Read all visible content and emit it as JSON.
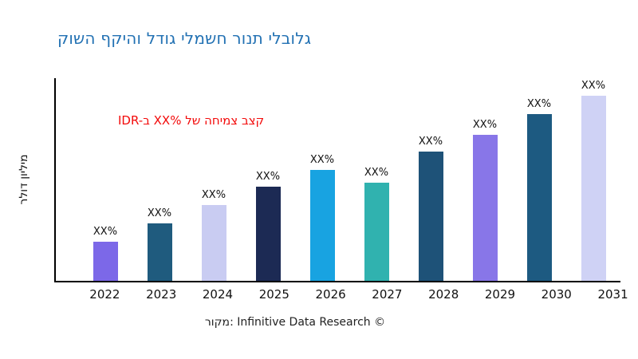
{
  "header": {
    "title": "קושה ףקיהו לדוג ילמשח רונת ילבולג",
    "title_color": "#2271B3"
  },
  "annotation": {
    "text": "IDR-ב XX% לש החימצ בצק",
    "color": "#F30A0A"
  },
  "y_axis": {
    "label": "רלוד ןוילימ"
  },
  "footer": {
    "text": "רוקמ: Infinitive Data Research ©"
  },
  "chart_data": {
    "type": "bar",
    "title": "קושה ףקיהו לדוג ילמשח רונת ילבולג",
    "categories": [
      "2022",
      "2023",
      "2024",
      "2025",
      "2026",
      "2027",
      "2028",
      "2029",
      "2030",
      "2031"
    ],
    "values": [
      21,
      31,
      41,
      51,
      60,
      53,
      70,
      79,
      90,
      100
    ],
    "bar_labels": [
      "XX%",
      "XX%",
      "XX%",
      "XX%",
      "XX%",
      "XX%",
      "XX%",
      "XX%",
      "XX%",
      "XX%"
    ],
    "bar_colors": [
      "#7C68E8",
      "#1F5B7E",
      "#C9CCF2",
      "#1C2A54",
      "#18A3E1",
      "#30B2AF",
      "#1E5278",
      "#8876E8",
      "#1D5A81",
      "#CFD2F5"
    ],
    "xlabel": "",
    "ylabel": "רלוד ןוילימ",
    "annotation": "IDR-ב XX% לש החימצ בצק",
    "value_note": "bars are unlabeled in source; every data label reads XX%, values are relative heights",
    "ylim": [
      0,
      100
    ],
    "grid": false,
    "legend": false,
    "axis_color": "#000000"
  }
}
